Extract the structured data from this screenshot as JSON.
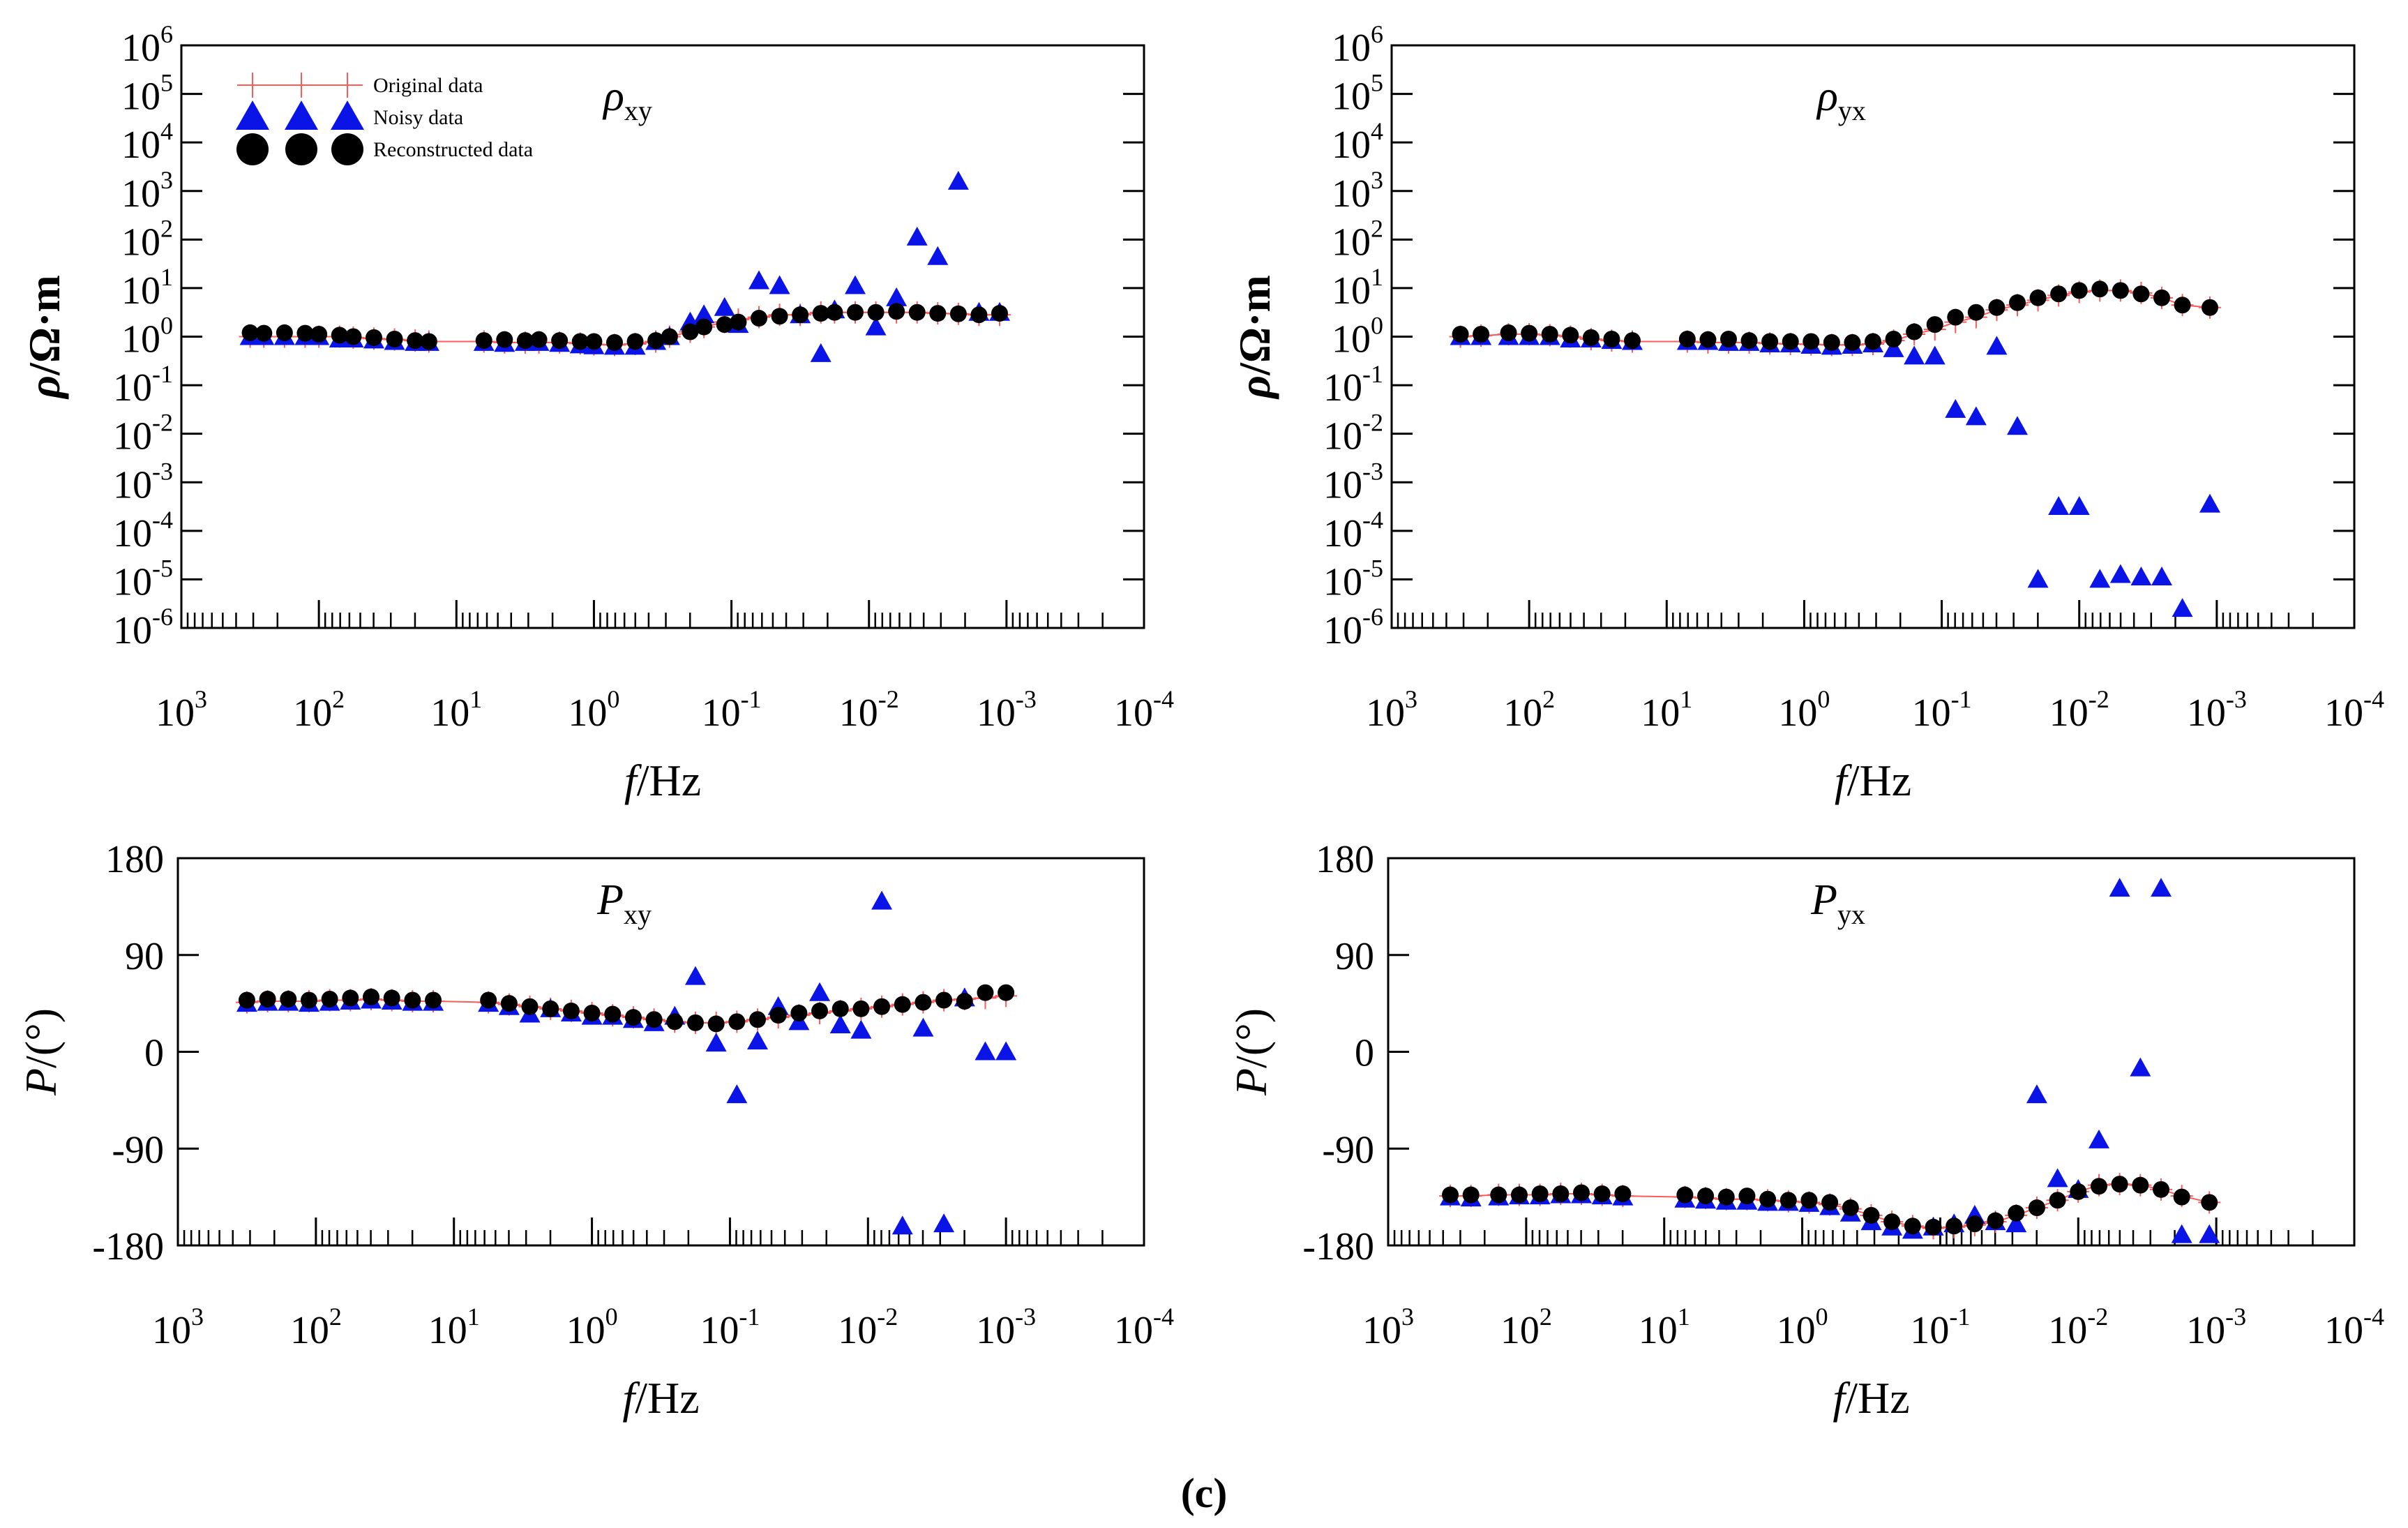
{
  "caption": "(c)",
  "legend": {
    "original": "Original data",
    "noisy": "Noisy data",
    "reconstructed": "Reconstructed data"
  },
  "colors": {
    "original": "#ff5a5a",
    "noisy": "#0a14e6",
    "reconstructed": "#000000",
    "axis": "#000000"
  },
  "x_axis": {
    "label_italic": "f",
    "label_unit": "/Hz",
    "ticks": [
      {
        "base": "10",
        "exp": "3"
      },
      {
        "base": "10",
        "exp": "2"
      },
      {
        "base": "10",
        "exp": "1"
      },
      {
        "base": "10",
        "exp": "0"
      },
      {
        "base": "10",
        "exp": "-1"
      },
      {
        "base": "10",
        "exp": "-2"
      },
      {
        "base": "10",
        "exp": "-3"
      },
      {
        "base": "10",
        "exp": "-4"
      }
    ]
  },
  "rho_axis": {
    "label_italic": "ρ",
    "label_unit": "/Ω·m",
    "ticks": [
      {
        "base": "10",
        "exp": "6"
      },
      {
        "base": "10",
        "exp": "5"
      },
      {
        "base": "10",
        "exp": "4"
      },
      {
        "base": "10",
        "exp": "3"
      },
      {
        "base": "10",
        "exp": "2"
      },
      {
        "base": "10",
        "exp": "1"
      },
      {
        "base": "10",
        "exp": "0"
      },
      {
        "base": "10",
        "exp": "-1"
      },
      {
        "base": "10",
        "exp": "-2"
      },
      {
        "base": "10",
        "exp": "-3"
      },
      {
        "base": "10",
        "exp": "-4"
      },
      {
        "base": "10",
        "exp": "-5"
      },
      {
        "base": "10",
        "exp": "-6"
      }
    ]
  },
  "phase_axis": {
    "label_italic": "P",
    "label_unit": "/(°)",
    "ticks": [
      "180",
      "90",
      "0",
      "-90",
      "-180"
    ]
  },
  "panel_titles": [
    {
      "main": "ρ",
      "sub": "xy"
    },
    {
      "main": "ρ",
      "sub": "yx"
    },
    {
      "main": "P",
      "sub": "xy"
    },
    {
      "main": "P",
      "sub": "yx"
    }
  ],
  "chart_data": [
    {
      "type": "scatter",
      "title": "ρxy",
      "xlabel": "f/Hz",
      "ylabel": "ρ/Ω·m",
      "xscale": "log",
      "xlim_exp": [
        3,
        -4
      ],
      "yscale": "log",
      "ylim_exp": [
        -6,
        6
      ],
      "legend_position": "top-left",
      "x_exp": [
        2.5,
        2.4,
        2.25,
        2.1,
        2.0,
        1.85,
        1.75,
        1.6,
        1.45,
        1.3,
        1.2,
        0.8,
        0.65,
        0.5,
        0.4,
        0.25,
        0.1,
        0.0,
        -0.15,
        -0.3,
        -0.45,
        -0.55,
        -0.7,
        -0.8,
        -0.95,
        -1.05,
        -1.2,
        -1.35,
        -1.5,
        -1.65,
        -1.75,
        -1.9,
        -2.05,
        -2.2,
        -2.35,
        -2.5,
        -2.65,
        -2.8,
        -2.95
      ],
      "series": [
        {
          "name": "Original data",
          "marker": "plus",
          "log10_values": [
            0.0,
            0.0,
            0.0,
            0.0,
            0.0,
            0.0,
            -0.02,
            -0.04,
            -0.06,
            -0.08,
            -0.1,
            -0.1,
            -0.12,
            -0.12,
            -0.12,
            -0.12,
            -0.14,
            -0.16,
            -0.17,
            -0.15,
            -0.1,
            0.0,
            0.1,
            0.2,
            0.3,
            0.35,
            0.4,
            0.45,
            0.45,
            0.5,
            0.5,
            0.5,
            0.5,
            0.5,
            0.5,
            0.48,
            0.47,
            0.45,
            0.45
          ]
        },
        {
          "name": "Noisy data",
          "marker": "triangle",
          "log10_values": [
            0.0,
            0.0,
            0.0,
            0.0,
            0.0,
            -0.05,
            -0.05,
            -0.07,
            -0.1,
            -0.12,
            -0.12,
            -0.12,
            -0.14,
            -0.12,
            -0.12,
            -0.14,
            -0.17,
            -0.19,
            -0.2,
            -0.2,
            -0.1,
            0.0,
            0.3,
            0.45,
            0.6,
            0.25,
            1.15,
            1.05,
            0.45,
            -0.35,
            0.55,
            1.05,
            0.2,
            0.8,
            2.05,
            1.65,
            3.2,
            0.5,
            0.5
          ]
        },
        {
          "name": "Reconstructed data",
          "marker": "circle",
          "log10_values": [
            0.08,
            0.07,
            0.08,
            0.07,
            0.05,
            0.03,
            0.0,
            -0.02,
            -0.05,
            -0.08,
            -0.1,
            -0.08,
            -0.06,
            -0.08,
            -0.06,
            -0.08,
            -0.1,
            -0.1,
            -0.12,
            -0.1,
            -0.08,
            0.0,
            0.1,
            0.2,
            0.25,
            0.3,
            0.38,
            0.42,
            0.45,
            0.48,
            0.5,
            0.5,
            0.5,
            0.52,
            0.5,
            0.48,
            0.47,
            0.45,
            0.48
          ]
        }
      ]
    },
    {
      "type": "scatter",
      "title": "ρyx",
      "xlabel": "f/Hz",
      "ylabel": "ρ/Ω·m",
      "xscale": "log",
      "xlim_exp": [
        3,
        -4
      ],
      "yscale": "log",
      "ylim_exp": [
        -6,
        6
      ],
      "x_exp": [
        2.5,
        2.35,
        2.15,
        2.0,
        1.85,
        1.7,
        1.55,
        1.4,
        1.25,
        0.85,
        0.7,
        0.55,
        0.4,
        0.25,
        0.1,
        -0.05,
        -0.2,
        -0.35,
        -0.5,
        -0.65,
        -0.8,
        -0.95,
        -1.1,
        -1.25,
        -1.4,
        -1.55,
        -1.7,
        -1.85,
        -2.0,
        -2.15,
        -2.3,
        -2.45,
        -2.6,
        -2.75,
        -2.95
      ],
      "series": [
        {
          "name": "Original data",
          "marker": "plus",
          "log10_values": [
            0.0,
            0.02,
            0.05,
            0.05,
            0.03,
            0.0,
            -0.05,
            -0.08,
            -0.1,
            -0.1,
            -0.12,
            -0.12,
            -0.12,
            -0.14,
            -0.15,
            -0.16,
            -0.17,
            -0.17,
            -0.15,
            -0.08,
            0.05,
            0.15,
            0.3,
            0.4,
            0.55,
            0.65,
            0.75,
            0.85,
            0.92,
            0.95,
            0.95,
            0.9,
            0.8,
            0.65,
            0.6
          ]
        },
        {
          "name": "Noisy data",
          "marker": "triangle",
          "log10_values": [
            0.0,
            0.0,
            0.0,
            0.0,
            0.0,
            -0.05,
            -0.05,
            -0.08,
            -0.1,
            -0.1,
            -0.1,
            -0.12,
            -0.12,
            -0.15,
            -0.15,
            -0.18,
            -0.2,
            -0.18,
            -0.15,
            -0.25,
            -0.4,
            -0.4,
            -1.5,
            -1.65,
            -0.2,
            -1.85,
            -5.0,
            -3.5,
            -3.5,
            -5.0,
            -4.9,
            -4.95,
            -4.95,
            -5.6,
            -3.45
          ]
        },
        {
          "name": "Reconstructed data",
          "marker": "circle",
          "log10_values": [
            0.05,
            0.05,
            0.08,
            0.07,
            0.05,
            0.03,
            -0.02,
            -0.05,
            -0.08,
            -0.05,
            -0.06,
            -0.05,
            -0.08,
            -0.1,
            -0.1,
            -0.1,
            -0.12,
            -0.12,
            -0.1,
            -0.05,
            0.1,
            0.25,
            0.4,
            0.5,
            0.6,
            0.7,
            0.8,
            0.88,
            0.95,
            0.98,
            0.95,
            0.88,
            0.8,
            0.65,
            0.6
          ]
        }
      ]
    },
    {
      "type": "scatter",
      "title": "Pxy",
      "xlabel": "f/Hz",
      "ylabel": "P/(°)",
      "xscale": "log",
      "xlim_exp": [
        3,
        -4
      ],
      "ylim": [
        -180,
        180
      ],
      "x_exp": [
        2.5,
        2.35,
        2.2,
        2.05,
        1.9,
        1.75,
        1.6,
        1.45,
        1.3,
        1.15,
        0.75,
        0.6,
        0.45,
        0.3,
        0.15,
        0.0,
        -0.15,
        -0.3,
        -0.45,
        -0.6,
        -0.75,
        -0.9,
        -1.05,
        -1.2,
        -1.35,
        -1.5,
        -1.65,
        -1.8,
        -1.95,
        -2.1,
        -2.25,
        -2.4,
        -2.55,
        -2.7,
        -2.85,
        -3.0
      ],
      "series": [
        {
          "name": "Original data",
          "marker": "plus",
          "values": [
            46,
            47,
            47,
            47,
            48,
            48,
            49,
            48,
            47,
            47,
            46,
            44,
            42,
            40,
            38,
            36,
            34,
            32,
            30,
            28,
            27,
            27,
            28,
            30,
            32,
            34,
            36,
            38,
            40,
            42,
            44,
            46,
            48,
            49,
            50,
            52
          ]
        },
        {
          "name": "Noisy data",
          "marker": "triangle",
          "values": [
            45,
            46,
            46,
            45,
            46,
            47,
            48,
            47,
            46,
            46,
            45,
            42,
            35,
            40,
            36,
            33,
            33,
            30,
            27,
            33,
            70,
            8,
            -40,
            10,
            42,
            28,
            55,
            25,
            20,
            140,
            -162,
            22,
            -160,
            50,
            0,
            0
          ]
        },
        {
          "name": "Reconstructed data",
          "marker": "circle",
          "values": [
            48,
            49,
            49,
            48,
            49,
            50,
            51,
            50,
            48,
            48,
            48,
            45,
            42,
            40,
            38,
            36,
            35,
            32,
            30,
            28,
            27,
            26,
            28,
            30,
            34,
            36,
            38,
            40,
            40,
            42,
            44,
            46,
            48,
            47,
            55,
            55
          ]
        }
      ]
    },
    {
      "type": "scatter",
      "title": "Pyx",
      "xlabel": "f/Hz",
      "ylabel": "P/(°)",
      "xscale": "log",
      "xlim_exp": [
        3,
        -4
      ],
      "ylim": [
        -180,
        180
      ],
      "x_exp": [
        2.55,
        2.4,
        2.2,
        2.05,
        1.9,
        1.75,
        1.6,
        1.45,
        1.3,
        0.85,
        0.7,
        0.55,
        0.4,
        0.25,
        0.1,
        -0.05,
        -0.2,
        -0.35,
        -0.5,
        -0.65,
        -0.8,
        -0.95,
        -1.1,
        -1.25,
        -1.4,
        -1.55,
        -1.7,
        -1.85,
        -2.0,
        -2.15,
        -2.3,
        -2.45,
        -2.6,
        -2.75,
        -2.95
      ],
      "series": [
        {
          "name": "Original data",
          "marker": "plus",
          "values": [
            -134,
            -134,
            -133,
            -133,
            -133,
            -132,
            -132,
            -133,
            -134,
            -135,
            -136,
            -137,
            -137,
            -138,
            -139,
            -140,
            -142,
            -146,
            -152,
            -158,
            -162,
            -164,
            -163,
            -161,
            -158,
            -152,
            -145,
            -138,
            -130,
            -124,
            -123,
            -124,
            -128,
            -134,
            -140
          ]
        },
        {
          "name": "Noisy data",
          "marker": "triangle",
          "values": [
            -135,
            -136,
            -135,
            -134,
            -134,
            -133,
            -133,
            -134,
            -135,
            -137,
            -138,
            -139,
            -139,
            -140,
            -140,
            -141,
            -144,
            -150,
            -158,
            -163,
            -166,
            -163,
            -160,
            -152,
            -158,
            -160,
            -40,
            -118,
            -128,
            -82,
            152,
            -15,
            152,
            -170,
            -170
          ]
        },
        {
          "name": "Reconstructed data",
          "marker": "circle",
          "values": [
            -133,
            -133,
            -133,
            -133,
            -132,
            -132,
            -131,
            -132,
            -132,
            -133,
            -134,
            -135,
            -134,
            -137,
            -138,
            -138,
            -140,
            -145,
            -152,
            -158,
            -162,
            -163,
            -162,
            -160,
            -157,
            -150,
            -145,
            -138,
            -130,
            -125,
            -123,
            -124,
            -128,
            -135,
            -140
          ]
        }
      ]
    }
  ]
}
